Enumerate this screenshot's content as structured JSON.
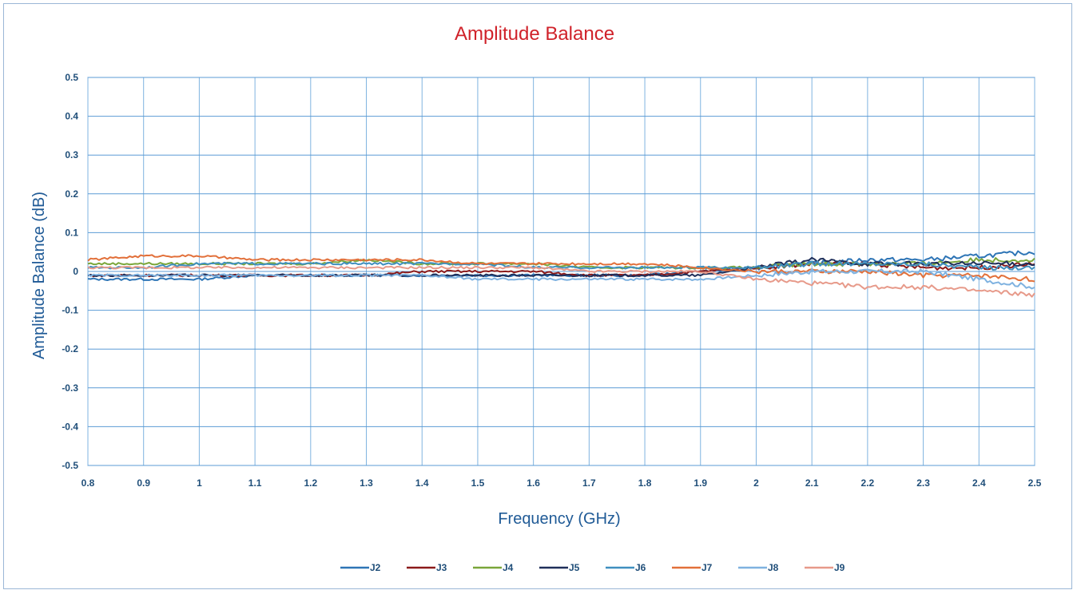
{
  "chart_data": {
    "type": "line",
    "title": "Amplitude Balance",
    "xlabel": "Frequency (GHz)",
    "ylabel": "Amplitude Balance (dB)",
    "xlim": [
      0.8,
      2.5
    ],
    "ylim": [
      -0.5,
      0.5
    ],
    "x_ticks": [
      0.8,
      0.9,
      1,
      1.1,
      1.2,
      1.3,
      1.4,
      1.5,
      1.6,
      1.7,
      1.8,
      1.9,
      2,
      2.1,
      2.2,
      2.3,
      2.4,
      2.5
    ],
    "x_tick_labels": [
      "0.8",
      "0.9",
      "1",
      "1.1",
      "1.2",
      "1.3",
      "1.4",
      "1.5",
      "1.6",
      "1.7",
      "1.8",
      "1.9",
      "2",
      "2.1",
      "2.2",
      "2.3",
      "2.4",
      "2.5"
    ],
    "y_ticks": [
      0.5,
      0.4,
      0.3,
      0.2,
      0.1,
      0,
      -0.1,
      -0.2,
      -0.3,
      -0.4,
      -0.5
    ],
    "y_tick_labels": [
      "0.5",
      "0.4",
      "0.3",
      "0.2",
      "0.1",
      "0",
      "-0.1",
      "-0.2",
      "-0.3",
      "-0.4",
      "-0.5"
    ],
    "grid": true,
    "legend_position": "bottom",
    "x": [
      0.8,
      0.9,
      1.0,
      1.1,
      1.2,
      1.3,
      1.4,
      1.5,
      1.6,
      1.7,
      1.8,
      1.9,
      2.0,
      2.1,
      2.2,
      2.3,
      2.4,
      2.5
    ],
    "series": [
      {
        "name": "J2",
        "color": "#2e75b6",
        "values": [
          -0.02,
          -0.02,
          -0.02,
          -0.01,
          -0.01,
          -0.01,
          -0.01,
          -0.01,
          -0.01,
          -0.01,
          -0.01,
          0.0,
          0.01,
          0.02,
          0.03,
          0.03,
          0.04,
          0.05
        ]
      },
      {
        "name": "J3",
        "color": "#8b1a1a",
        "values": [
          -0.01,
          -0.01,
          -0.01,
          -0.01,
          -0.01,
          -0.01,
          0.0,
          0.0,
          0.0,
          -0.01,
          -0.01,
          0.0,
          0.01,
          0.02,
          0.02,
          0.01,
          0.01,
          0.02
        ]
      },
      {
        "name": "J4",
        "color": "#7aa63a",
        "values": [
          0.02,
          0.02,
          0.02,
          0.02,
          0.02,
          0.03,
          0.02,
          0.02,
          0.02,
          0.01,
          0.01,
          0.01,
          0.01,
          0.02,
          0.02,
          0.02,
          0.03,
          0.03
        ]
      },
      {
        "name": "J5",
        "color": "#1f2f5a",
        "values": [
          -0.01,
          -0.01,
          -0.01,
          -0.01,
          -0.01,
          -0.01,
          -0.01,
          -0.01,
          -0.01,
          -0.01,
          -0.01,
          -0.01,
          0.01,
          0.03,
          0.02,
          0.02,
          0.02,
          0.02
        ]
      },
      {
        "name": "J6",
        "color": "#3f8fbf",
        "values": [
          0.01,
          0.01,
          0.02,
          0.02,
          0.02,
          0.02,
          0.02,
          0.02,
          0.01,
          0.01,
          0.01,
          0.01,
          0.01,
          0.02,
          0.02,
          0.02,
          0.01,
          0.01
        ]
      },
      {
        "name": "J7",
        "color": "#e2703a",
        "values": [
          0.03,
          0.04,
          0.04,
          0.03,
          0.03,
          0.03,
          0.03,
          0.02,
          0.02,
          0.02,
          0.02,
          0.01,
          0.0,
          0.0,
          0.0,
          -0.01,
          -0.01,
          -0.02
        ]
      },
      {
        "name": "J8",
        "color": "#7fb2e0",
        "values": [
          -0.01,
          -0.01,
          -0.01,
          -0.01,
          -0.01,
          -0.01,
          -0.01,
          -0.02,
          -0.02,
          -0.02,
          -0.02,
          -0.02,
          -0.01,
          0.0,
          0.0,
          0.0,
          -0.02,
          -0.04
        ]
      },
      {
        "name": "J9",
        "color": "#e79a8a",
        "values": [
          0.01,
          0.01,
          0.01,
          0.01,
          0.01,
          0.01,
          0.01,
          0.01,
          0.01,
          0.0,
          0.0,
          0.0,
          -0.02,
          -0.03,
          -0.04,
          -0.04,
          -0.05,
          -0.06
        ]
      }
    ]
  }
}
